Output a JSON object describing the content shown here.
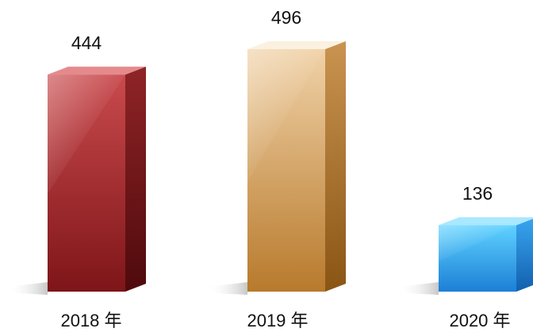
{
  "chart_data": {
    "type": "bar",
    "categories": [
      "2018 年",
      "2019 年",
      "2020 年"
    ],
    "values": [
      444,
      496,
      136
    ],
    "data_labels": [
      "444",
      "496",
      "136"
    ],
    "title": "",
    "xlabel": "",
    "ylabel": "",
    "ylim": [
      0,
      496
    ],
    "grid": false,
    "legend": "none",
    "bar_style": "3d-box",
    "colors": {
      "2018 年": {
        "front_light": "#c94a4d",
        "front_dark": "#7e1518",
        "side_light": "#8f2427",
        "side_dark": "#4f0a0c",
        "top": "#e58a8c"
      },
      "2019 年": {
        "front_light": "#f0d2a8",
        "front_dark": "#b87a2c",
        "side_light": "#c99450",
        "side_dark": "#8a5514",
        "top": "#fbf1e0"
      },
      "2020 年": {
        "front_light": "#5fd2ff",
        "front_dark": "#1c7fd6",
        "side_light": "#3aa6f0",
        "side_dark": "#125fae",
        "top": "#a9e8ff"
      }
    }
  }
}
